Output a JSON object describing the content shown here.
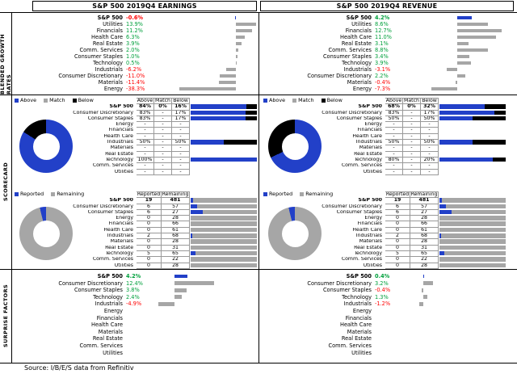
{
  "titles": {
    "earnings": "S&P 500 2019Q4 EARNINGS",
    "revenue": "S&P 500 2019Q4 REVENUE"
  },
  "sidebar_sections": [
    "BLENDED GROWTH RATES",
    "SCORECARD",
    "SURPRISE FACTORS"
  ],
  "source_note": "Source: I/B/E/S data from Refinitiv",
  "colors": {
    "blue": "#2240C8",
    "gray": "#A6A6A6",
    "black": "#000000",
    "green": "#00A03C",
    "red": "#FF0000"
  },
  "chart_data": [
    {
      "panel": "earnings",
      "block": "growth",
      "type": "bar",
      "orientation": "horizontal",
      "name": "S&P 500 2019Q4 EARNINGS - BLENDED GROWTH RATES",
      "units": "%",
      "categories": [
        "S&P 500",
        "Utilities",
        "Financials",
        "Health Care",
        "Real Estate",
        "Comm. Services",
        "Consumer Staples",
        "Technology",
        "Industrials",
        "Consumer Discretionary",
        "Materials",
        "Energy"
      ],
      "values": [
        -0.6,
        13.9,
        11.2,
        6.3,
        3.9,
        2.0,
        1.0,
        0.5,
        -6.2,
        -11.0,
        -11.4,
        -38.3
      ],
      "xlim": [
        -40,
        15
      ]
    },
    {
      "panel": "earnings",
      "block": "scorecard_donut",
      "type": "pie",
      "name": "S&P 500 2019Q4 EARNINGS - SCORECARD ABOVE/MATCH/BELOW",
      "labels": [
        "Above",
        "Match",
        "Below"
      ],
      "values": [
        84,
        0,
        16
      ]
    },
    {
      "panel": "earnings",
      "block": "scorecard_table",
      "type": "table",
      "name": "S&P 500 2019Q4 EARNINGS - SCORECARD TABLE",
      "units": "%",
      "columns": [
        "Above",
        "Match",
        "Below"
      ],
      "rows": [
        {
          "sector": "S&P 500",
          "above": 84,
          "match": 0,
          "below": 16
        },
        {
          "sector": "Consumer Discretionary",
          "above": 83,
          "match": null,
          "below": 17
        },
        {
          "sector": "Consumer Staples",
          "above": 83,
          "match": null,
          "below": 17
        },
        {
          "sector": "Energy",
          "above": null,
          "match": null,
          "below": null
        },
        {
          "sector": "Financials",
          "above": null,
          "match": null,
          "below": null
        },
        {
          "sector": "Health Care",
          "above": null,
          "match": null,
          "below": null
        },
        {
          "sector": "Industrials",
          "above": 50,
          "match": null,
          "below": 50
        },
        {
          "sector": "Materials",
          "above": null,
          "match": null,
          "below": null
        },
        {
          "sector": "Real Estate",
          "above": null,
          "match": null,
          "below": null
        },
        {
          "sector": "Technology",
          "above": 100,
          "match": null,
          "below": null
        },
        {
          "sector": "Comm. Services",
          "above": null,
          "match": null,
          "below": null
        },
        {
          "sector": "Utilities",
          "above": null,
          "match": null,
          "below": null
        }
      ]
    },
    {
      "panel": "earnings",
      "block": "reported_donut",
      "type": "pie",
      "name": "S&P 500 2019Q4 EARNINGS - REPORTED/REMAINING",
      "labels": [
        "Reported",
        "Remaining"
      ],
      "values": [
        19,
        481
      ]
    },
    {
      "panel": "earnings",
      "block": "reported_table",
      "type": "table",
      "name": "S&P 500 2019Q4 EARNINGS - REPORTED TABLE",
      "columns": [
        "Reported",
        "Remaining"
      ],
      "rows": [
        {
          "sector": "S&P 500",
          "reported": 19,
          "remaining": 481
        },
        {
          "sector": "Consumer Discretionary",
          "reported": 6,
          "remaining": 57
        },
        {
          "sector": "Consumer Staples",
          "reported": 6,
          "remaining": 27
        },
        {
          "sector": "Energy",
          "reported": 0,
          "remaining": 28
        },
        {
          "sector": "Financials",
          "reported": 0,
          "remaining": 66
        },
        {
          "sector": "Health Care",
          "reported": 0,
          "remaining": 61
        },
        {
          "sector": "Industrials",
          "reported": 2,
          "remaining": 68
        },
        {
          "sector": "Materials",
          "reported": 0,
          "remaining": 28
        },
        {
          "sector": "Real Estate",
          "reported": 0,
          "remaining": 31
        },
        {
          "sector": "Technology",
          "reported": 5,
          "remaining": 65
        },
        {
          "sector": "Comm. Services",
          "reported": 0,
          "remaining": 22
        },
        {
          "sector": "Utilities",
          "reported": 0,
          "remaining": 28
        }
      ]
    },
    {
      "panel": "earnings",
      "block": "surprise",
      "type": "bar",
      "orientation": "horizontal",
      "name": "S&P 500 2019Q4 EARNINGS - SURPRISE FACTORS",
      "units": "%",
      "categories": [
        "S&P 500",
        "Consumer Discretionary",
        "Consumer Staples",
        "Technology",
        "Industrials",
        "Energy",
        "Financials",
        "Health Care",
        "Materials",
        "Real Estate",
        "Comm. Services",
        "Utilities"
      ],
      "values": [
        4.2,
        12.4,
        3.8,
        2.4,
        -4.9,
        null,
        null,
        null,
        null,
        null,
        null,
        null
      ],
      "xlim": [
        -6,
        13
      ]
    },
    {
      "panel": "revenue",
      "block": "growth",
      "type": "bar",
      "orientation": "horizontal",
      "name": "S&P 500 2019Q4 REVENUE - BLENDED GROWTH RATES",
      "units": "%",
      "categories": [
        "S&P 500",
        "Utilities",
        "Financials",
        "Health Care",
        "Real Estate",
        "Comm. Services",
        "Consumer Staples",
        "Technology",
        "Industrials",
        "Consumer Discretionary",
        "Materials",
        "Energy"
      ],
      "values": [
        4.2,
        8.6,
        12.7,
        11.0,
        3.1,
        8.8,
        3.4,
        3.9,
        -3.1,
        2.2,
        -0.4,
        -7.3
      ],
      "xlim": [
        -9,
        14
      ]
    },
    {
      "panel": "revenue",
      "block": "scorecard_donut",
      "type": "pie",
      "name": "S&P 500 2019Q4 REVENUE - SCORECARD ABOVE/MATCH/BELOW",
      "labels": [
        "Above",
        "Match",
        "Below"
      ],
      "values": [
        68,
        0,
        32
      ]
    },
    {
      "panel": "revenue",
      "block": "scorecard_table",
      "type": "table",
      "name": "S&P 500 2019Q4 REVENUE - SCORECARD TABLE",
      "units": "%",
      "columns": [
        "Above",
        "Match",
        "Below"
      ],
      "rows": [
        {
          "sector": "S&P 500",
          "above": 68,
          "match": 0,
          "below": 32
        },
        {
          "sector": "Consumer Discretionary",
          "above": 83,
          "match": null,
          "below": 17
        },
        {
          "sector": "Consumer Staples",
          "above": 50,
          "match": null,
          "below": 50
        },
        {
          "sector": "Energy",
          "above": null,
          "match": null,
          "below": null
        },
        {
          "sector": "Financials",
          "above": null,
          "match": null,
          "below": null
        },
        {
          "sector": "Health Care",
          "above": null,
          "match": null,
          "below": null
        },
        {
          "sector": "Industrials",
          "above": 50,
          "match": null,
          "below": 50
        },
        {
          "sector": "Materials",
          "above": null,
          "match": null,
          "below": null
        },
        {
          "sector": "Real Estate",
          "above": null,
          "match": null,
          "below": null
        },
        {
          "sector": "Technology",
          "above": 80,
          "match": null,
          "below": 20
        },
        {
          "sector": "Comm. Services",
          "above": null,
          "match": null,
          "below": null
        },
        {
          "sector": "Utilities",
          "above": null,
          "match": null,
          "below": null
        }
      ]
    },
    {
      "panel": "revenue",
      "block": "reported_donut",
      "type": "pie",
      "name": "S&P 500 2019Q4 REVENUE - REPORTED/REMAINING",
      "labels": [
        "Reported",
        "Remaining"
      ],
      "values": [
        19,
        481
      ]
    },
    {
      "panel": "revenue",
      "block": "reported_table",
      "type": "table",
      "name": "S&P 500 2019Q4 REVENUE - REPORTED TABLE",
      "columns": [
        "Reported",
        "Remaining"
      ],
      "rows": [
        {
          "sector": "S&P 500",
          "reported": 19,
          "remaining": 481
        },
        {
          "sector": "Consumer Discretionary",
          "reported": 6,
          "remaining": 57
        },
        {
          "sector": "Consumer Staples",
          "reported": 6,
          "remaining": 27
        },
        {
          "sector": "Energy",
          "reported": 0,
          "remaining": 28
        },
        {
          "sector": "Financials",
          "reported": 0,
          "remaining": 66
        },
        {
          "sector": "Health Care",
          "reported": 0,
          "remaining": 61
        },
        {
          "sector": "Industrials",
          "reported": 2,
          "remaining": 68
        },
        {
          "sector": "Materials",
          "reported": 0,
          "remaining": 28
        },
        {
          "sector": "Real Estate",
          "reported": 0,
          "remaining": 31
        },
        {
          "sector": "Technology",
          "reported": 5,
          "remaining": 65
        },
        {
          "sector": "Comm. Services",
          "reported": 0,
          "remaining": 22
        },
        {
          "sector": "Utilities",
          "reported": 0,
          "remaining": 28
        }
      ]
    },
    {
      "panel": "revenue",
      "block": "surprise",
      "type": "bar",
      "orientation": "horizontal",
      "name": "S&P 500 2019Q4 REVENUE - SURPRISE FACTORS",
      "units": "%",
      "categories": [
        "S&P 500",
        "Consumer Discretionary",
        "Consumer Staples",
        "Technology",
        "Industrials",
        "Energy",
        "Financials",
        "Health Care",
        "Materials",
        "Real Estate",
        "Comm. Services",
        "Utilities"
      ],
      "values": [
        0.4,
        3.2,
        -0.4,
        1.3,
        -1.2,
        null,
        null,
        null,
        null,
        null,
        null,
        null
      ],
      "xlim": [
        -6,
        13
      ]
    }
  ]
}
